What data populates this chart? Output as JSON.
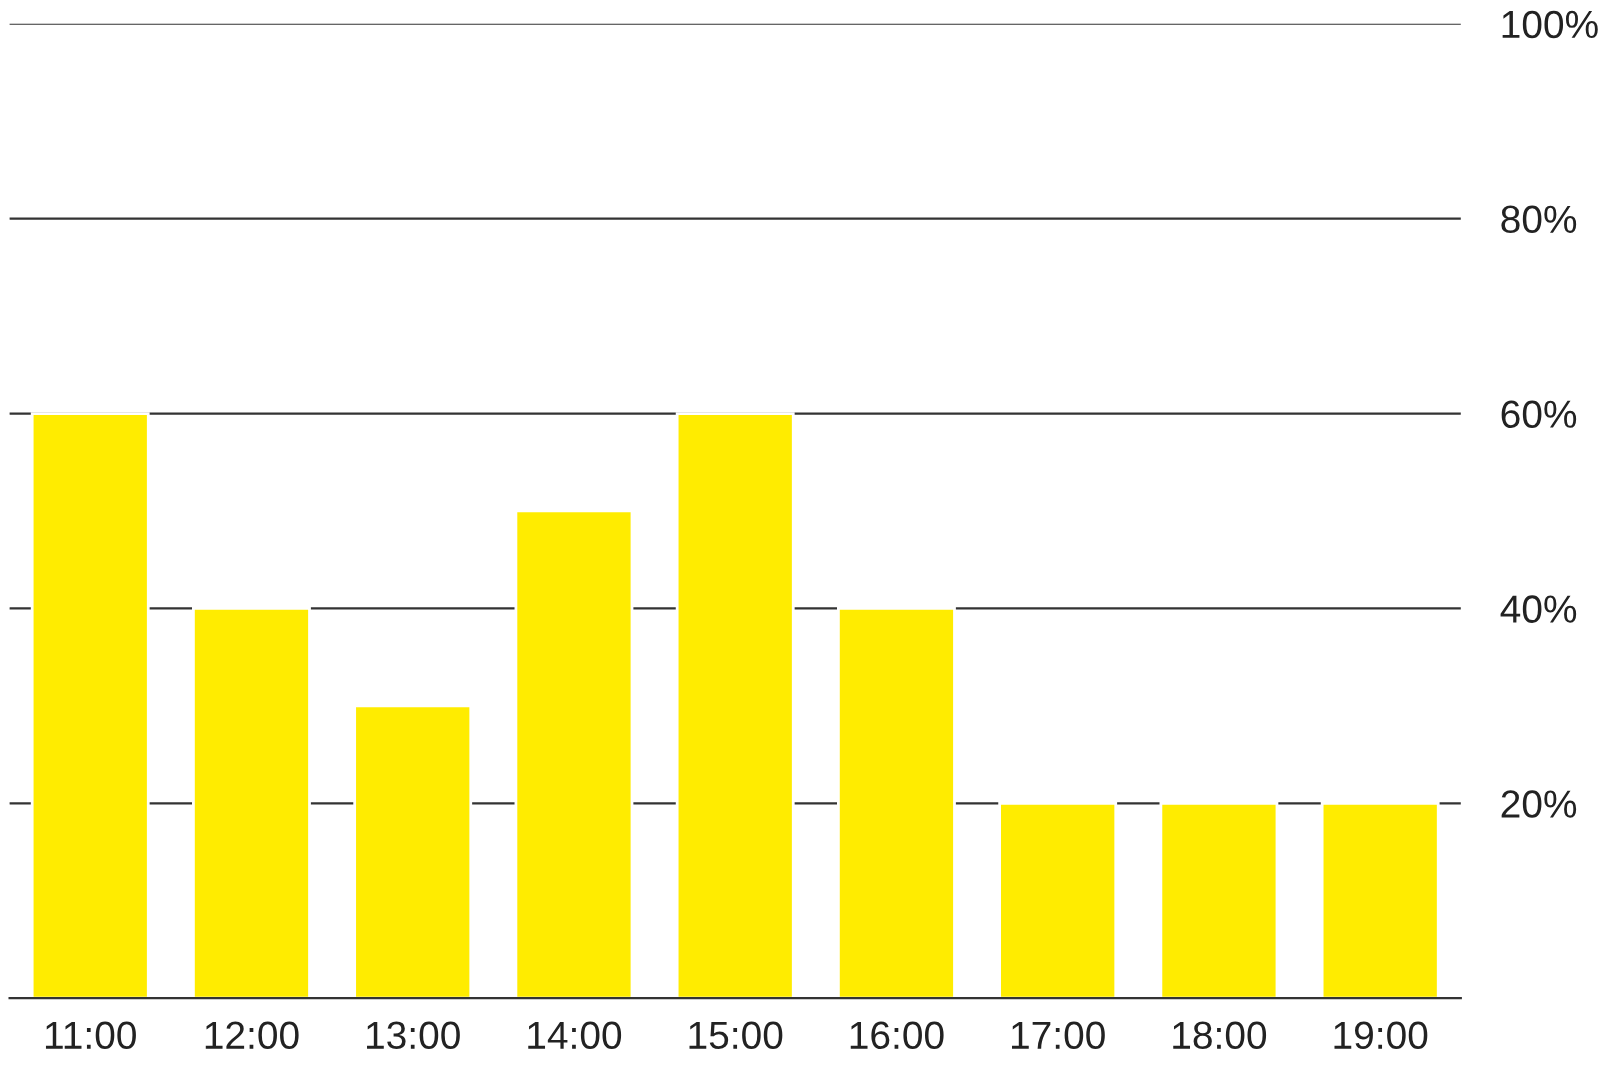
{
  "chart_data": {
    "type": "bar",
    "categories": [
      "11:00",
      "12:00",
      "13:00",
      "14:00",
      "15:00",
      "16:00",
      "17:00",
      "18:00",
      "19:00"
    ],
    "values": [
      60,
      40,
      30,
      50,
      60,
      40,
      20,
      20,
      20
    ],
    "color": "#ffec00",
    "ylim": [
      0,
      100
    ],
    "yticks": [
      {
        "value": 0,
        "label": null
      },
      {
        "value": 20,
        "label": "20%"
      },
      {
        "value": 40,
        "label": "40%"
      },
      {
        "value": 60,
        "label": "60%"
      },
      {
        "value": 80,
        "label": "80%"
      },
      {
        "value": 100,
        "label": "100%"
      }
    ],
    "grid": "y"
  }
}
